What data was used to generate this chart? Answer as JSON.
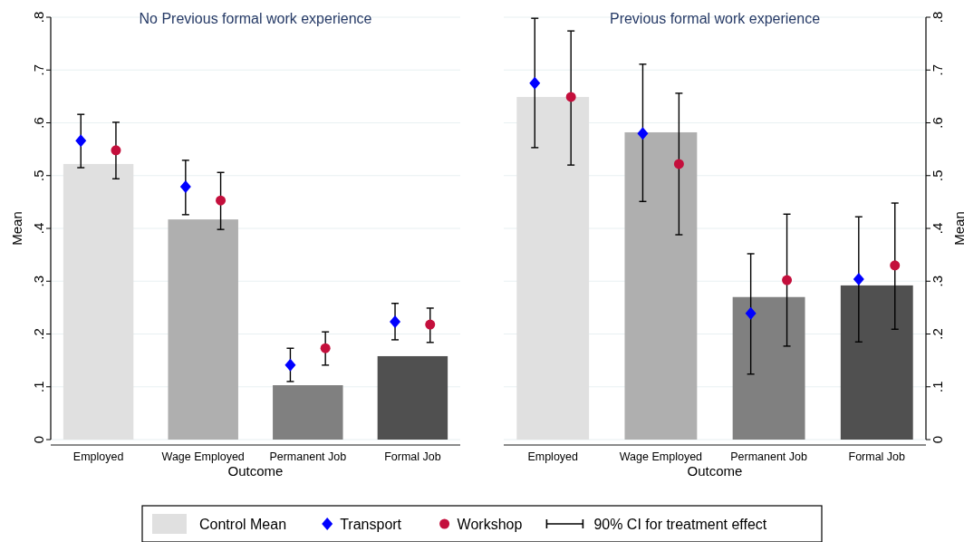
{
  "chart_data": [
    {
      "type": "bar",
      "title": "No Previous formal work experience",
      "xlabel": "Outcome",
      "ylabel": "Mean",
      "categories": [
        "Employed",
        "Wage Employed",
        "Permanent Job",
        "Formal Job"
      ],
      "ylim": [
        0,
        0.8
      ],
      "yticks": [
        {
          "value": 0,
          "label": "0"
        },
        {
          "value": 0.1,
          "label": ".1"
        },
        {
          "value": 0.2,
          "label": ".2"
        },
        {
          "value": 0.3,
          "label": ".3"
        },
        {
          "value": 0.4,
          "label": ".4"
        },
        {
          "value": 0.5,
          "label": ".5"
        },
        {
          "value": 0.6,
          "label": ".6"
        },
        {
          "value": 0.7,
          "label": ".7"
        },
        {
          "value": 0.8,
          "label": ".8"
        }
      ],
      "grid": "y",
      "legend": "bottom",
      "annotations": [
        "90% CI for treatment effect"
      ],
      "series": [
        {
          "name": "Control Mean",
          "color": "#e0e0e0",
          "colors": [
            "#e0e0e0",
            "#afafaf",
            "#808080",
            "#505050"
          ],
          "values": [
            0.522,
            0.417,
            0.103,
            0.158
          ]
        },
        {
          "name": "Transport",
          "type": "scatter",
          "marker": "diamond",
          "color": "#0000ff",
          "x": [
            "Employed",
            "Wage Employed",
            "Permanent Job",
            "Formal Job"
          ],
          "values": [
            0.566,
            0.479,
            0.141,
            0.223
          ],
          "errors": [
            [
              0.515,
              0.616
            ],
            [
              0.426,
              0.529
            ],
            [
              0.11,
              0.173
            ],
            [
              0.189,
              0.258
            ]
          ]
        },
        {
          "name": "Workshop",
          "type": "scatter",
          "marker": "circle",
          "color": "#c40f3c",
          "x": [
            "Employed",
            "Wage Employed",
            "Permanent Job",
            "Formal Job"
          ],
          "values": [
            0.548,
            0.453,
            0.173,
            0.218
          ],
          "errors": [
            [
              0.494,
              0.601
            ],
            [
              0.398,
              0.506
            ],
            [
              0.141,
              0.204
            ],
            [
              0.184,
              0.249
            ]
          ]
        }
      ]
    },
    {
      "type": "bar",
      "title": "Previous formal work experience",
      "xlabel": "Outcome",
      "y2label": "Mean",
      "categories": [
        "Employed",
        "Wage Employed",
        "Permanent Job",
        "Formal Job"
      ],
      "y2lim": [
        0,
        0.8
      ],
      "y2ticks": [
        {
          "value": 0,
          "label": "0"
        },
        {
          "value": 0.1,
          "label": ".1"
        },
        {
          "value": 0.2,
          "label": ".2"
        },
        {
          "value": 0.3,
          "label": ".3"
        },
        {
          "value": 0.4,
          "label": ".4"
        },
        {
          "value": 0.5,
          "label": ".5"
        },
        {
          "value": 0.6,
          "label": ".6"
        },
        {
          "value": 0.7,
          "label": ".7"
        },
        {
          "value": 0.8,
          "label": ".8"
        }
      ],
      "grid": "y",
      "series": [
        {
          "axis": "y2",
          "colors": [
            "#e0e0e0",
            "#afafaf",
            "#808080",
            "#505050"
          ],
          "values": [
            0.649,
            0.582,
            0.27,
            0.292
          ]
        },
        {
          "type": "scatter",
          "axis": "y2",
          "marker": "diamond",
          "color": "#0000ff",
          "x": [
            "Employed",
            "Wage Employed",
            "Permanent Job",
            "Formal Job"
          ],
          "values": [
            0.675,
            0.58,
            0.239,
            0.304
          ],
          "errors": [
            [
              0.553,
              0.798
            ],
            [
              0.451,
              0.711
            ],
            [
              0.124,
              0.352
            ],
            [
              0.185,
              0.422
            ]
          ]
        },
        {
          "type": "scatter",
          "axis": "y2",
          "marker": "circle",
          "color": "#c40f3c",
          "x": [
            "Employed",
            "Wage Employed",
            "Permanent Job",
            "Formal Job"
          ],
          "values": [
            0.649,
            0.522,
            0.302,
            0.33
          ],
          "errors": [
            [
              0.52,
              0.774
            ],
            [
              0.388,
              0.656
            ],
            [
              0.177,
              0.427
            ],
            [
              0.209,
              0.448
            ]
          ]
        }
      ]
    }
  ]
}
